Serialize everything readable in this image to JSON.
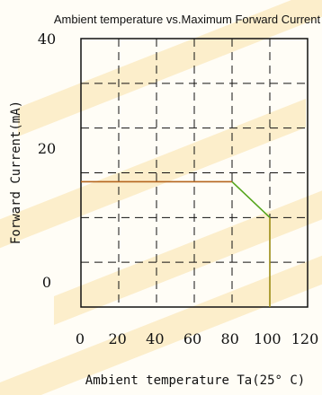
{
  "chart_data": {
    "type": "line",
    "title": "Ambient temperature vs.Maximum Forward Current",
    "xlabel": "Ambient temperature Ta(25° C)",
    "ylabel": "Forward Current(mA)",
    "x_ticks": [
      "0",
      "20",
      "40",
      "60",
      "80",
      "100",
      "120"
    ],
    "y_ticks": [
      "0",
      "20",
      "40"
    ],
    "xlim": [
      0,
      120
    ],
    "ylim": [
      -5,
      40
    ],
    "grid": true,
    "series": [
      {
        "color": "#b5651d",
        "x": [
          0,
          80
        ],
        "y": [
          16,
          16
        ]
      },
      {
        "color": "#55a51c",
        "x": [
          80,
          100
        ],
        "y": [
          16,
          10
        ]
      },
      {
        "color": "#9a8a12",
        "x": [
          100,
          100
        ],
        "y": [
          10,
          -5
        ]
      }
    ]
  },
  "background": {
    "fill": "#fffdf6",
    "watermark_color": "#f6d27c"
  }
}
